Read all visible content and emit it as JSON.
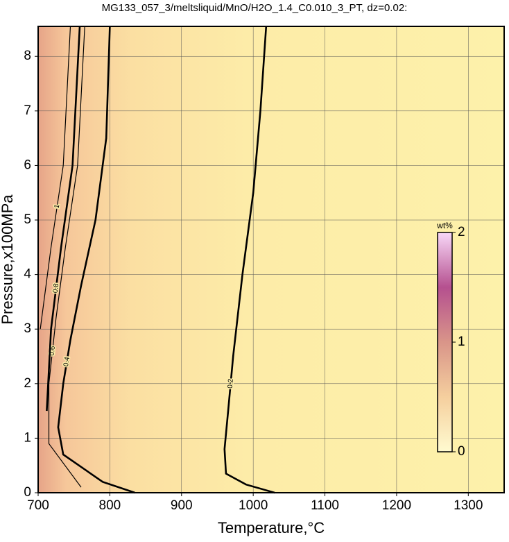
{
  "chart_data": {
    "type": "contour",
    "title": "MG133_057_3/meltsliquid/MnO/H2O_1.4_C0.010_3_PT, dz=0.02:",
    "x_label": "Temperature,°C",
    "y_label": "Pressure,x100MPa",
    "xlim": [
      700,
      1350
    ],
    "ylim": [
      0,
      8.55
    ],
    "xticks": [
      700,
      800,
      900,
      1000,
      1100,
      1200,
      1300
    ],
    "yticks": [
      0,
      1,
      2,
      3,
      4,
      5,
      6,
      7,
      8
    ],
    "grid": true,
    "contours": [
      {
        "level": 0.2,
        "bold": true,
        "x": [
          1030,
          990,
          962,
          960,
          965,
          972,
          985,
          1000,
          1010,
          1018
        ],
        "y": [
          0,
          0.15,
          0.35,
          0.8,
          1.5,
          2.5,
          4,
          5.5,
          7,
          8.55
        ]
      },
      {
        "level": 0.4,
        "bold": true,
        "x": [
          835,
          790,
          735,
          728,
          735,
          745,
          760,
          780,
          795,
          800
        ],
        "y": [
          0,
          0.2,
          0.7,
          1.2,
          2,
          2.8,
          3.8,
          5,
          6.5,
          8.55
        ]
      },
      {
        "level": 0.6,
        "bold": false,
        "x": [
          760,
          715,
          715,
          725,
          738,
          755,
          765
        ],
        "y": [
          0.1,
          0.9,
          2,
          3.2,
          4.5,
          6,
          8.55
        ]
      },
      {
        "level": 0.8,
        "bold": true,
        "x": [
          712,
          718,
          732,
          748,
          758
        ],
        "y": [
          1.5,
          3,
          4.5,
          6,
          8.55
        ]
      },
      {
        "level": 1,
        "bold": false,
        "x": [
          703,
          718,
          735,
          745
        ],
        "y": [
          3,
          4.5,
          6,
          8.55
        ]
      }
    ],
    "colorbar": {
      "label": "wt%",
      "lim": [
        0,
        2
      ],
      "ticks": [
        0,
        1,
        2
      ],
      "colors": [
        "#fffbd0",
        "#f5cf9e",
        "#d99589",
        "#b5508f",
        "#f8d8f8"
      ]
    }
  }
}
